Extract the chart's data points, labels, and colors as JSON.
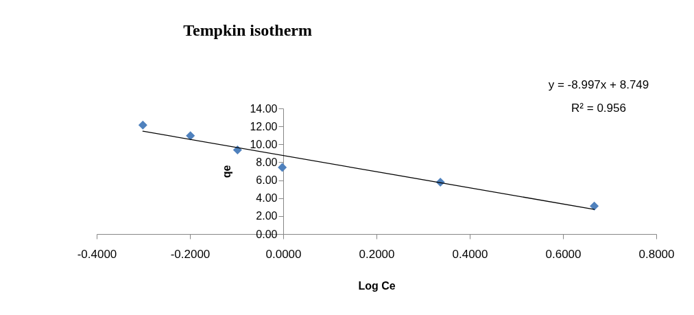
{
  "chart_data": {
    "type": "scatter",
    "title": "Tempkin isotherm",
    "xlabel": "Log Ce",
    "ylabel": "qe",
    "marker": "diamond",
    "grid": false,
    "xlim": [
      -0.4,
      0.8
    ],
    "xticks": [
      {
        "value": -0.4,
        "label": "-0.4000"
      },
      {
        "value": -0.2,
        "label": "-0.2000"
      },
      {
        "value": 0,
        "label": "0.0000"
      },
      {
        "value": 0.2,
        "label": "0.2000"
      },
      {
        "value": 0.4,
        "label": "0.4000"
      },
      {
        "value": 0.6,
        "label": "0.6000"
      },
      {
        "value": 0.8,
        "label": "0.8000"
      }
    ],
    "ylim": [
      0,
      14
    ],
    "yticks": [
      {
        "value": 0,
        "label": "0.00"
      },
      {
        "value": 2,
        "label": "2.00"
      },
      {
        "value": 4,
        "label": "4.00"
      },
      {
        "value": 6,
        "label": "6.00"
      },
      {
        "value": 8,
        "label": "8.00"
      },
      {
        "value": 10,
        "label": "10.00"
      },
      {
        "value": 12,
        "label": "12.00"
      },
      {
        "value": 14,
        "label": "14.00"
      }
    ],
    "series": [
      {
        "color": "#4f81bd",
        "x": [
          -0.301,
          -0.199,
          -0.098,
          -0.002,
          0.337,
          0.667
        ],
        "values": [
          12.14,
          10.95,
          9.37,
          7.43,
          5.78,
          3.11
        ]
      },
      {
        "type": "line",
        "color": "#000000",
        "x": [
          -0.301,
          0.667
        ],
        "values": [
          11.46,
          2.75
        ],
        "marker": "none"
      }
    ],
    "annotations": [
      "y = -8.997x + 8.749",
      "R² = 0.956"
    ]
  }
}
